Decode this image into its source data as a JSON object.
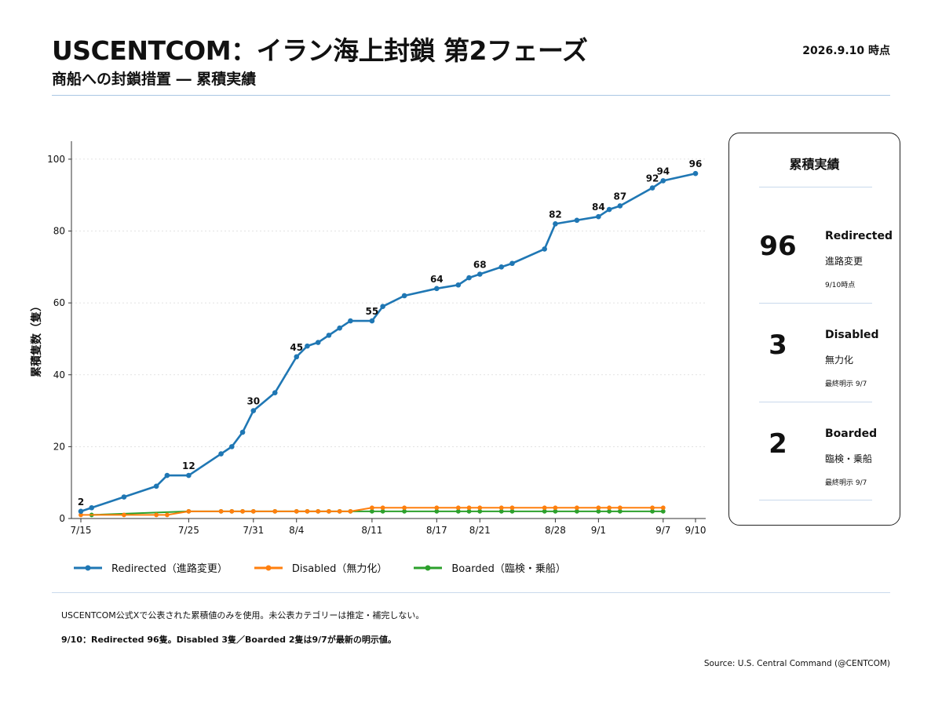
{
  "header": {
    "title": "USCENTCOM：イラン海上封鎖 第2フェーズ",
    "subtitle": "商船への封鎖措置 ― 累積実績",
    "timestamp": "2026.9.10 時点"
  },
  "chart_data": {
    "type": "line",
    "title": "",
    "xlabel": "",
    "ylabel": "累積隻数（隻）",
    "ylim": [
      0,
      105
    ],
    "yticks": [
      0,
      20,
      40,
      60,
      80,
      100
    ],
    "x_start": "7/15",
    "x_end": "9/10",
    "x_ticks": [
      {
        "date": "7/15",
        "label": "7/15"
      },
      {
        "date": "7/25",
        "label": "7/25"
      },
      {
        "date": "7/31",
        "label": "7/31"
      },
      {
        "date": "8/4",
        "label": "8/4"
      },
      {
        "date": "8/11",
        "label": "8/11"
      },
      {
        "date": "8/17",
        "label": "8/17"
      },
      {
        "date": "8/21",
        "label": "8/21"
      },
      {
        "date": "8/28",
        "label": "8/28"
      },
      {
        "date": "9/1",
        "label": "9/1"
      },
      {
        "date": "9/7",
        "label": "9/7"
      },
      {
        "date": "9/10",
        "label": "9/10"
      }
    ],
    "grid": "y-dotted",
    "legend_position": "bottom-left",
    "series": [
      {
        "name": "Redirected（進路変更）",
        "color": "#1f77b4",
        "points": [
          {
            "x": "7/15",
            "y": 2,
            "label": "2"
          },
          {
            "x": "7/16",
            "y": 3
          },
          {
            "x": "7/19",
            "y": 6
          },
          {
            "x": "7/22",
            "y": 9
          },
          {
            "x": "7/23",
            "y": 12
          },
          {
            "x": "7/25",
            "y": 12,
            "label": "12"
          },
          {
            "x": "7/28",
            "y": 18
          },
          {
            "x": "7/29",
            "y": 20
          },
          {
            "x": "7/30",
            "y": 24
          },
          {
            "x": "7/31",
            "y": 30,
            "label": "30"
          },
          {
            "x": "8/2",
            "y": 35
          },
          {
            "x": "8/4",
            "y": 45,
            "label": "45"
          },
          {
            "x": "8/5",
            "y": 48
          },
          {
            "x": "8/6",
            "y": 49
          },
          {
            "x": "8/7",
            "y": 51
          },
          {
            "x": "8/8",
            "y": 53
          },
          {
            "x": "8/9",
            "y": 55
          },
          {
            "x": "8/11",
            "y": 55,
            "label": "55"
          },
          {
            "x": "8/12",
            "y": 59
          },
          {
            "x": "8/14",
            "y": 62
          },
          {
            "x": "8/17",
            "y": 64,
            "label": "64"
          },
          {
            "x": "8/19",
            "y": 65
          },
          {
            "x": "8/20",
            "y": 67
          },
          {
            "x": "8/21",
            "y": 68,
            "label": "68"
          },
          {
            "x": "8/23",
            "y": 70
          },
          {
            "x": "8/24",
            "y": 71
          },
          {
            "x": "8/27",
            "y": 75
          },
          {
            "x": "8/28",
            "y": 82,
            "label": "82"
          },
          {
            "x": "8/30",
            "y": 83
          },
          {
            "x": "9/1",
            "y": 84,
            "label": "84"
          },
          {
            "x": "9/2",
            "y": 86
          },
          {
            "x": "9/3",
            "y": 87,
            "label": "87"
          },
          {
            "x": "9/6",
            "y": 92,
            "label": "92"
          },
          {
            "x": "9/7",
            "y": 94,
            "label": "94"
          },
          {
            "x": "9/10",
            "y": 96,
            "label": "96"
          }
        ]
      },
      {
        "name": "Disabled（無力化）",
        "color": "#ff7f0e",
        "points": [
          {
            "x": "7/15",
            "y": 1
          },
          {
            "x": "7/19",
            "y": 1
          },
          {
            "x": "7/22",
            "y": 1
          },
          {
            "x": "7/23",
            "y": 1
          },
          {
            "x": "7/25",
            "y": 2
          },
          {
            "x": "7/28",
            "y": 2
          },
          {
            "x": "7/29",
            "y": 2
          },
          {
            "x": "7/30",
            "y": 2
          },
          {
            "x": "7/31",
            "y": 2
          },
          {
            "x": "8/2",
            "y": 2
          },
          {
            "x": "8/4",
            "y": 2
          },
          {
            "x": "8/5",
            "y": 2
          },
          {
            "x": "8/6",
            "y": 2
          },
          {
            "x": "8/7",
            "y": 2
          },
          {
            "x": "8/8",
            "y": 2
          },
          {
            "x": "8/9",
            "y": 2
          },
          {
            "x": "8/11",
            "y": 3
          },
          {
            "x": "8/12",
            "y": 3
          },
          {
            "x": "8/14",
            "y": 3
          },
          {
            "x": "8/17",
            "y": 3
          },
          {
            "x": "8/19",
            "y": 3
          },
          {
            "x": "8/20",
            "y": 3
          },
          {
            "x": "8/21",
            "y": 3
          },
          {
            "x": "8/23",
            "y": 3
          },
          {
            "x": "8/24",
            "y": 3
          },
          {
            "x": "8/27",
            "y": 3
          },
          {
            "x": "8/28",
            "y": 3
          },
          {
            "x": "8/30",
            "y": 3
          },
          {
            "x": "9/1",
            "y": 3
          },
          {
            "x": "9/2",
            "y": 3
          },
          {
            "x": "9/3",
            "y": 3
          },
          {
            "x": "9/6",
            "y": 3
          },
          {
            "x": "9/7",
            "y": 3
          }
        ]
      },
      {
        "name": "Boarded（臨検・乗船）",
        "color": "#2ca02c",
        "points": [
          {
            "x": "7/16",
            "y": 1
          },
          {
            "x": "7/25",
            "y": 2
          },
          {
            "x": "7/28",
            "y": 2
          },
          {
            "x": "7/29",
            "y": 2
          },
          {
            "x": "7/30",
            "y": 2
          },
          {
            "x": "7/31",
            "y": 2
          },
          {
            "x": "8/2",
            "y": 2
          },
          {
            "x": "8/4",
            "y": 2
          },
          {
            "x": "8/5",
            "y": 2
          },
          {
            "x": "8/6",
            "y": 2
          },
          {
            "x": "8/7",
            "y": 2
          },
          {
            "x": "8/8",
            "y": 2
          },
          {
            "x": "8/9",
            "y": 2
          },
          {
            "x": "8/11",
            "y": 2
          },
          {
            "x": "8/12",
            "y": 2
          },
          {
            "x": "8/14",
            "y": 2
          },
          {
            "x": "8/17",
            "y": 2
          },
          {
            "x": "8/19",
            "y": 2
          },
          {
            "x": "8/20",
            "y": 2
          },
          {
            "x": "8/21",
            "y": 2
          },
          {
            "x": "8/23",
            "y": 2
          },
          {
            "x": "8/24",
            "y": 2
          },
          {
            "x": "8/27",
            "y": 2
          },
          {
            "x": "8/28",
            "y": 2
          },
          {
            "x": "8/30",
            "y": 2
          },
          {
            "x": "9/1",
            "y": 2
          },
          {
            "x": "9/2",
            "y": 2
          },
          {
            "x": "9/3",
            "y": 2
          },
          {
            "x": "9/6",
            "y": 2
          },
          {
            "x": "9/7",
            "y": 2
          }
        ]
      }
    ]
  },
  "legend": [
    {
      "label": "Redirected（進路変更）",
      "color": "#1f77b4"
    },
    {
      "label": "Disabled（無力化）",
      "color": "#ff7f0e"
    },
    {
      "label": "Boarded（臨検・乗船）",
      "color": "#2ca02c"
    }
  ],
  "summary": {
    "title": "累積実績",
    "stats": [
      {
        "value": "96",
        "label": "Redirected",
        "sub": "進路変更",
        "note": "9/10時点"
      },
      {
        "value": "3",
        "label": "Disabled",
        "sub": "無力化",
        "note": "最終明示 9/7"
      },
      {
        "value": "2",
        "label": "Boarded",
        "sub": "臨検・乗船",
        "note": "最終明示 9/7"
      }
    ]
  },
  "footer": {
    "note1": "USCENTCOM公式Xで公表された累積値のみを使用。未公表カテゴリーは推定・補完しない。",
    "note2": "9/10：Redirected 96隻。Disabled 3隻／Boarded 2隻は9/7が最新の明示値。",
    "source": "Source: U.S. Central Command (@CENTCOM)"
  }
}
